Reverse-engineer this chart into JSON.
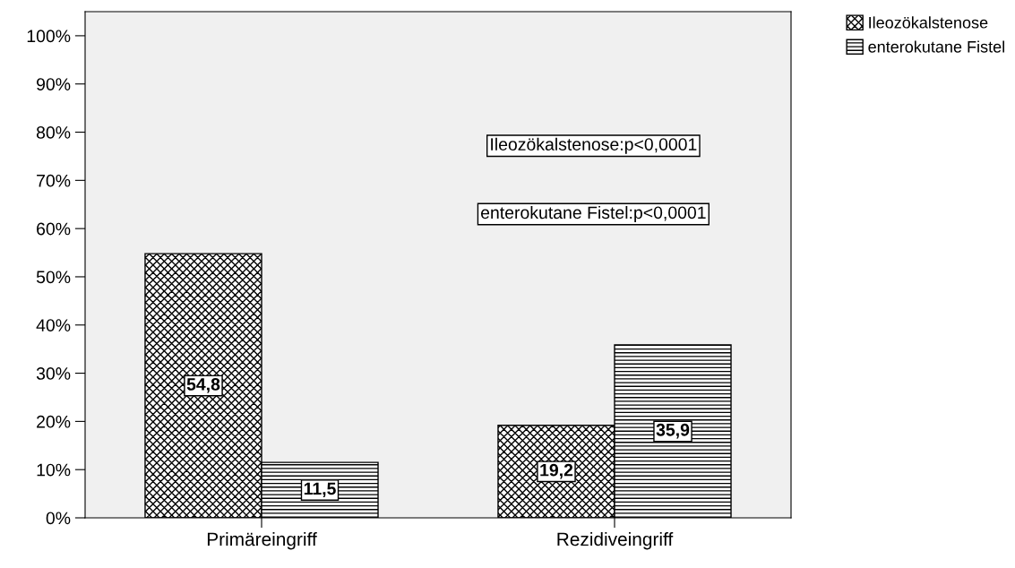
{
  "chart_data": {
    "type": "bar",
    "categories": [
      "Primäreingriff",
      "Rezidiveingriff"
    ],
    "series": [
      {
        "name": "Ileozökalstenose",
        "color": "#000000",
        "values": [
          54.8,
          19.2
        ],
        "value_labels": [
          "54,8",
          "19,2"
        ]
      },
      {
        "name": "enterokutane Fistel",
        "color": "#000000",
        "values": [
          11.5,
          35.9
        ],
        "value_labels": [
          "11,5",
          "35,9"
        ]
      }
    ],
    "ylim": [
      0,
      105
    ],
    "yticks": [
      {
        "value": 0,
        "label": "0%"
      },
      {
        "value": 10,
        "label": "10%"
      },
      {
        "value": 20,
        "label": "20%"
      },
      {
        "value": 30,
        "label": "30%"
      },
      {
        "value": 40,
        "label": "40%"
      },
      {
        "value": 50,
        "label": "50%"
      },
      {
        "value": 60,
        "label": "60%"
      },
      {
        "value": 70,
        "label": "70%"
      },
      {
        "value": 80,
        "label": "80%"
      },
      {
        "value": 90,
        "label": "90%"
      },
      {
        "value": 100,
        "label": "100%"
      }
    ],
    "annotations": [
      "Ileozökalstenose:p<0,0001",
      "enterokutane Fistel:p<0,0001"
    ],
    "grid": false,
    "legend": "top right"
  }
}
